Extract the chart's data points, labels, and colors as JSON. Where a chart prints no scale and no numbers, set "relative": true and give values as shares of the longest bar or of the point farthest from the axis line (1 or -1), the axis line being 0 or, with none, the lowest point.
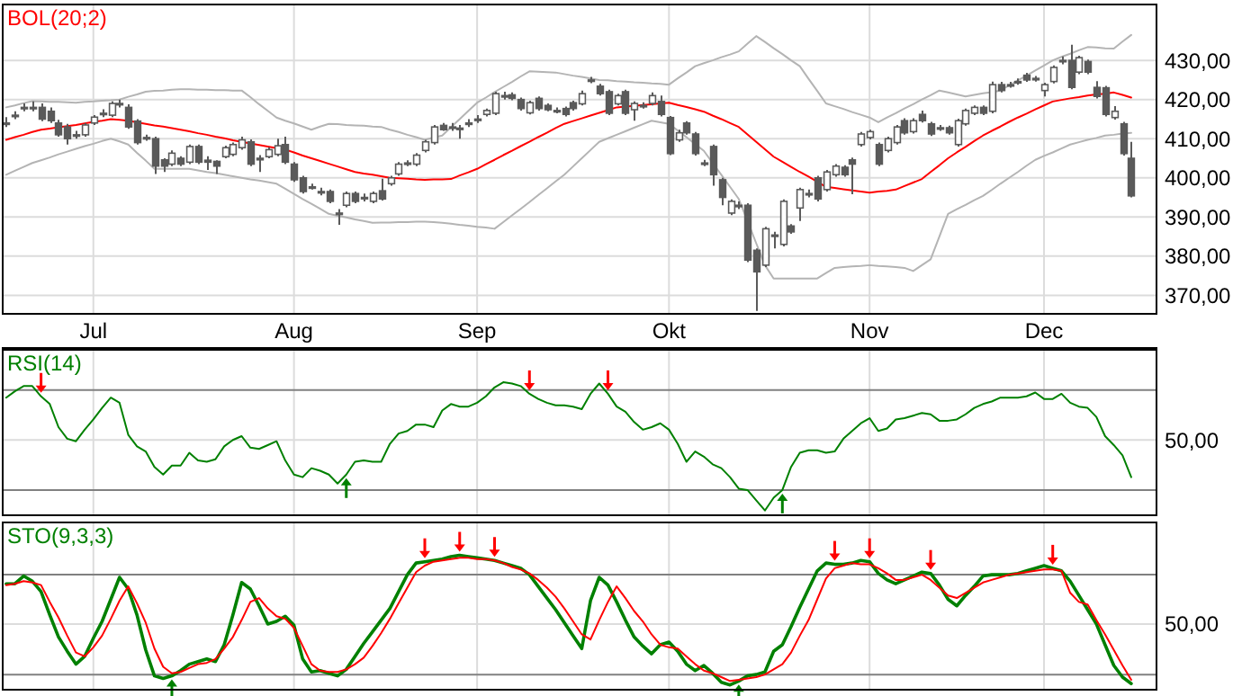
{
  "chart_data": [
    {
      "type": "candlestick",
      "title": "BOL(20;2)",
      "categories": [
        null,
        null,
        null,
        null,
        null,
        null,
        null,
        null,
        null,
        null,
        "Jul",
        null,
        null,
        null,
        null,
        null,
        null,
        null,
        null,
        null,
        null,
        null,
        null,
        null,
        null,
        null,
        null,
        null,
        null,
        null,
        null,
        null,
        null,
        "Aug",
        null,
        null,
        null,
        null,
        null,
        null,
        null,
        null,
        null,
        null,
        null,
        null,
        null,
        null,
        null,
        null,
        null,
        null,
        null,
        null,
        "Sep",
        null,
        null,
        null,
        null,
        null,
        null,
        null,
        null,
        null,
        null,
        null,
        null,
        null,
        null,
        null,
        null,
        null,
        null,
        null,
        null,
        null,
        "Okt",
        null,
        null,
        null,
        null,
        null,
        null,
        null,
        null,
        null,
        null,
        null,
        null,
        null,
        null,
        null,
        null,
        null,
        null,
        null,
        null,
        null,
        null,
        "Nov",
        null,
        null,
        null,
        null,
        null,
        null,
        null,
        null,
        null,
        null,
        null,
        null,
        null,
        null,
        null,
        null,
        null,
        null,
        null,
        "Dec",
        null,
        null,
        null,
        null,
        null,
        null,
        null,
        null,
        null,
        null
      ],
      "ohlc": [
        [
          414,
          415.5,
          413,
          414
        ],
        [
          416,
          417,
          415,
          416
        ],
        [
          418,
          419,
          417,
          418
        ],
        [
          418,
          419.5,
          417,
          418
        ],
        [
          418,
          419,
          414.5,
          415
        ],
        [
          417,
          418,
          414,
          414.6
        ],
        [
          414,
          414.8,
          410.5,
          411
        ],
        [
          413,
          413.8,
          408.5,
          410
        ],
        [
          411,
          412,
          410,
          411
        ],
        [
          411,
          414,
          410.5,
          413.5
        ],
        [
          414,
          416,
          413.5,
          415.5
        ],
        [
          416.5,
          417.5,
          415.5,
          416.5
        ],
        [
          416,
          419.5,
          415.5,
          419
        ],
        [
          419,
          420,
          418,
          419
        ],
        [
          418,
          418.8,
          412.5,
          413
        ],
        [
          414.5,
          415,
          408.5,
          409
        ],
        [
          410.3,
          411,
          409.5,
          410.3
        ],
        [
          410,
          410.5,
          401,
          403
        ],
        [
          404.6,
          405,
          401.5,
          403
        ],
        [
          403.5,
          407,
          403,
          406.3
        ],
        [
          405,
          405.5,
          403,
          403.5
        ],
        [
          404,
          408.5,
          403.5,
          408
        ],
        [
          408,
          408.5,
          403.5,
          404
        ],
        [
          404.5,
          405.5,
          402,
          404
        ],
        [
          404.2,
          404.5,
          401,
          403
        ],
        [
          405.4,
          408.2,
          405,
          407.7
        ],
        [
          406,
          409,
          405.5,
          408.5
        ],
        [
          407.7,
          410.5,
          407.2,
          409.7
        ],
        [
          409.2,
          409.8,
          403,
          403.5
        ],
        [
          405,
          405.8,
          401.5,
          404.6
        ],
        [
          405.4,
          407.8,
          405,
          407.2
        ],
        [
          406,
          410,
          405.5,
          408.2
        ],
        [
          408.5,
          410.5,
          403.5,
          404
        ],
        [
          403.5,
          404,
          399,
          399.5
        ],
        [
          400,
          400.5,
          396,
          396.5
        ],
        [
          397.7,
          398.5,
          397,
          397.7
        ],
        [
          396.5,
          397.5,
          395.5,
          396.5
        ],
        [
          396.5,
          397,
          393.5,
          394
        ],
        [
          391,
          392,
          388,
          391
        ],
        [
          393,
          396.5,
          392.5,
          396
        ],
        [
          396,
          396.5,
          393.5,
          394
        ],
        [
          395,
          396,
          394,
          395
        ],
        [
          394,
          396.5,
          393.5,
          396
        ],
        [
          396.7,
          399.8,
          394.2,
          394.6
        ],
        [
          398.5,
          400.5,
          398,
          400
        ],
        [
          401,
          404,
          400.5,
          403.5
        ],
        [
          403.8,
          404.5,
          403,
          403.8
        ],
        [
          403.5,
          406.3,
          403,
          405.8
        ],
        [
          407,
          409.7,
          406.5,
          409.2
        ],
        [
          409,
          413.5,
          408.5,
          413
        ],
        [
          413.4,
          414,
          412,
          412.3
        ],
        [
          413,
          414,
          412,
          413
        ],
        [
          412.7,
          413.5,
          410,
          412.7
        ],
        [
          414,
          415,
          413,
          414
        ],
        [
          415,
          416,
          414,
          415
        ],
        [
          416.2,
          417.7,
          415.7,
          417.2
        ],
        [
          416.5,
          422,
          416,
          421.5
        ],
        [
          421,
          422,
          420,
          421
        ],
        [
          421.2,
          421.8,
          419.8,
          420.3
        ],
        [
          420,
          420.5,
          417.2,
          417.7
        ],
        [
          416.6,
          419.7,
          416.2,
          419.2
        ],
        [
          420.3,
          420.8,
          417.2,
          417.7
        ],
        [
          418.5,
          419,
          417,
          417.4
        ],
        [
          417.2,
          418,
          416.5,
          417.2
        ],
        [
          417.7,
          418.2,
          415.7,
          416.2
        ],
        [
          419.2,
          419.7,
          417.2,
          417.7
        ],
        [
          418.9,
          422.3,
          418.5,
          421.5
        ],
        [
          425,
          425.8,
          424.2,
          425
        ],
        [
          423.4,
          424,
          421,
          421.5
        ],
        [
          422,
          422.5,
          416,
          416.5
        ],
        [
          418.9,
          421.5,
          418.5,
          421
        ],
        [
          422,
          422.5,
          416,
          416.5
        ],
        [
          417.4,
          419.5,
          414.6,
          419
        ],
        [
          418.5,
          419.3,
          417.7,
          418.5
        ],
        [
          419,
          421.8,
          418.5,
          421
        ],
        [
          419.5,
          421,
          415.7,
          416.2
        ],
        [
          415.4,
          415.8,
          405.8,
          406.2
        ],
        [
          409.7,
          412.3,
          409.2,
          411.5
        ],
        [
          414,
          414.5,
          411,
          411.5
        ],
        [
          411.2,
          411.7,
          405.7,
          406.2
        ],
        [
          403.8,
          404.6,
          403,
          403.8
        ],
        [
          408,
          408.5,
          398,
          400.8
        ],
        [
          399.5,
          400,
          393,
          395
        ],
        [
          391,
          394.5,
          390.5,
          394
        ],
        [
          393,
          394,
          392,
          393
        ],
        [
          393,
          393.5,
          378.5,
          379
        ],
        [
          381.5,
          382,
          366,
          376
        ],
        [
          377.7,
          387.5,
          377.2,
          387
        ],
        [
          385.4,
          386.2,
          382,
          385.4
        ],
        [
          383,
          394.5,
          382.5,
          394
        ],
        [
          387.7,
          388.2,
          385.7,
          386.2
        ],
        [
          392.3,
          397.5,
          389,
          397
        ],
        [
          396,
          397,
          395,
          396
        ],
        [
          400,
          400.5,
          394,
          394.6
        ],
        [
          397,
          402,
          396.5,
          401.5
        ],
        [
          400.8,
          403.5,
          400.3,
          403
        ],
        [
          402.7,
          403.2,
          400.3,
          400.8
        ],
        [
          404.6,
          405.2,
          395.8,
          403.5
        ],
        [
          408.5,
          411.7,
          408,
          411.2
        ],
        [
          410.3,
          412.3,
          409.8,
          411.8
        ],
        [
          408.5,
          409,
          403,
          403.5
        ],
        [
          407,
          410.5,
          406.5,
          410
        ],
        [
          409,
          413.5,
          408.5,
          413
        ],
        [
          414.6,
          415.2,
          411,
          411.5
        ],
        [
          411.8,
          415.2,
          411.3,
          414.6
        ],
        [
          416.2,
          417.2,
          414.1,
          414.6
        ],
        [
          413.8,
          414.3,
          410.7,
          411.2
        ],
        [
          412.8,
          413.5,
          412,
          412.8
        ],
        [
          412.8,
          413.3,
          411,
          411.5
        ],
        [
          408.5,
          415.1,
          408,
          414.6
        ],
        [
          413.8,
          417.7,
          413.3,
          417.2
        ],
        [
          416.5,
          418.5,
          416,
          418
        ],
        [
          418,
          418.5,
          416,
          416.5
        ],
        [
          417,
          424.6,
          416.5,
          423.8
        ],
        [
          423.8,
          424.5,
          421.8,
          422.3
        ],
        [
          423.8,
          424.5,
          423,
          423.8
        ],
        [
          424.6,
          425.4,
          423.8,
          424.6
        ],
        [
          426.2,
          426.8,
          424.5,
          425
        ],
        [
          425.4,
          426,
          424.6,
          425.4
        ],
        [
          422.3,
          424.3,
          420.8,
          423.8
        ],
        [
          424.6,
          428.7,
          424.1,
          428.2
        ],
        [
          430,
          431,
          429,
          430
        ],
        [
          430,
          434,
          422.6,
          423.1
        ],
        [
          427,
          431.2,
          426.5,
          430.7
        ],
        [
          429.7,
          430.2,
          426.5,
          427
        ],
        [
          423.1,
          424.7,
          420.3,
          420.8
        ],
        [
          423,
          423.5,
          415.7,
          416.2
        ],
        [
          415.4,
          418.3,
          414.9,
          417
        ],
        [
          413.8,
          414.3,
          405.7,
          406.2
        ],
        [
          405,
          409.2,
          395,
          395.4
        ]
      ],
      "series": [
        {
          "type": "line",
          "color": "#ff0000",
          "values": [
            409.7,
            410.4,
            411,
            411.7,
            412.3,
            412.6,
            412.9,
            413.2,
            413.5,
            413.9,
            414.3,
            414.6,
            415,
            414.8,
            414.6,
            414.2,
            413.8,
            413.4,
            413.1,
            412.7,
            412.3,
            411.9,
            411.4,
            411,
            410.5,
            410.1,
            409.6,
            409.2,
            408.8,
            408.4,
            408,
            407.6,
            407.2,
            406.5,
            405.7,
            405,
            404.3,
            403.6,
            402.9,
            402.2,
            401.5,
            401.1,
            400.8,
            400.4,
            400,
            399.9,
            399.8,
            399.6,
            399.5,
            399.6,
            399.6,
            399.7,
            400.6,
            401.4,
            402.3,
            403.5,
            404.6,
            405.8,
            406.9,
            408.1,
            409.2,
            410.4,
            411.5,
            412.7,
            413.8,
            414.5,
            415.2,
            415.9,
            416.6,
            417.3,
            418,
            418.2,
            418.4,
            418.6,
            418.8,
            419,
            419.2,
            418.6,
            418.1,
            417.5,
            416.9,
            415.9,
            415,
            414,
            413,
            411.1,
            409.2,
            407.3,
            405.4,
            404.1,
            402.8,
            401.5,
            400.3,
            399,
            397.7,
            397.4,
            397.1,
            396.8,
            396.5,
            396.2,
            396.5,
            396.7,
            397,
            397.9,
            398.8,
            399.7,
            401.5,
            403.2,
            405,
            406.5,
            407.9,
            409.4,
            410.8,
            412,
            413.1,
            414.3,
            415.4,
            416.4,
            417.5,
            418.5,
            419.5,
            419.9,
            420.3,
            420.6,
            421,
            421.3,
            421.5,
            421.8,
            421.2,
            420.5
          ]
        },
        {
          "type": "line",
          "color": "#b4b4b4",
          "values": [
            418,
            418.5,
            419.1,
            419.6,
            419.5,
            419.4,
            419.4,
            419.3,
            419.2,
            419.4,
            419.5,
            419.7,
            419.8,
            420,
            420.7,
            421.3,
            422,
            422.2,
            422.3,
            422.5,
            422.6,
            422.6,
            422.5,
            422.5,
            422.4,
            422.4,
            422.3,
            422.3,
            420.6,
            418.8,
            417.1,
            415.4,
            414.6,
            413.9,
            413.1,
            412.3,
            413.1,
            413.8,
            413.7,
            413.5,
            413.4,
            413.3,
            413.1,
            413,
            412.3,
            411.7,
            411,
            410.4,
            409.7,
            410.3,
            410.8,
            412.9,
            415,
            417.1,
            419.2,
            420.5,
            421.9,
            423.2,
            424.5,
            425.9,
            427.2,
            427.1,
            427,
            426.9,
            426.5,
            426.1,
            425.8,
            425.4,
            425,
            424.9,
            424.7,
            424.6,
            424.4,
            424.3,
            424.1,
            424,
            423.8,
            425.4,
            426.9,
            428.5,
            429.3,
            430,
            430.8,
            431.5,
            432.3,
            434.3,
            436.2,
            434.7,
            433.1,
            431.6,
            430,
            428.5,
            425.3,
            422.2,
            419,
            418.3,
            417.6,
            416.8,
            416.1,
            415.4,
            414.2,
            415.4,
            416.5,
            417.7,
            418.8,
            420,
            421.1,
            422.3,
            421.8,
            421.3,
            420.8,
            421.2,
            421.6,
            421.9,
            422.3,
            423.6,
            424.9,
            426.1,
            427.4,
            428.7,
            430,
            430.9,
            431.7,
            432.6,
            433.4,
            433.3,
            433.1,
            433,
            434.8,
            436.5
          ]
        },
        {
          "type": "line",
          "color": "#b4b4b4",
          "values": [
            400.8,
            401.8,
            402.8,
            403.8,
            404.5,
            405.2,
            406,
            406.7,
            407.4,
            408.1,
            408.7,
            409.4,
            410,
            409.3,
            408.5,
            406.4,
            404.4,
            402.3,
            402.3,
            402.3,
            402.3,
            402.3,
            401.9,
            401.5,
            401.2,
            400.8,
            400.4,
            400,
            399.6,
            399.3,
            398.9,
            398.5,
            397.2,
            395.9,
            394.6,
            393.4,
            392.1,
            390.8,
            390.3,
            389.9,
            389.4,
            389,
            388.5,
            388.6,
            388.6,
            388.7,
            388.7,
            388.8,
            388.8,
            388.7,
            388.5,
            388.3,
            388,
            387.8,
            387.5,
            387.3,
            387,
            388.7,
            390.4,
            392.1,
            393.8,
            395.6,
            397.3,
            399.1,
            400.8,
            402.9,
            405,
            407.1,
            409.2,
            410.1,
            411,
            411.9,
            412.8,
            413.7,
            414.6,
            414.2,
            413.8,
            412.1,
            410.4,
            408.6,
            406.9,
            403.8,
            400.8,
            397.7,
            394.6,
            389,
            383.3,
            377.7,
            374.3,
            374.3,
            374.3,
            374.3,
            374.3,
            374.3,
            375.7,
            377,
            377.2,
            377.4,
            377.5,
            377.7,
            377.5,
            377.4,
            377.2,
            377,
            376.2,
            377.7,
            379.2,
            385,
            390.8,
            392,
            393.1,
            394.3,
            395.4,
            396.9,
            398.5,
            400,
            401.5,
            403.1,
            404.6,
            405.6,
            406.5,
            407.5,
            408.5,
            409.1,
            409.7,
            410.2,
            410.8,
            411,
            411.3,
            411.5
          ]
        }
      ],
      "ylim": [
        365.5,
        444.5
      ],
      "yticks": [
        {
          "value": 370,
          "label": "370,00"
        },
        {
          "value": 380,
          "label": "380,00"
        },
        {
          "value": 390,
          "label": "390,00"
        },
        {
          "value": 400,
          "label": "400,00"
        },
        {
          "value": 410,
          "label": "410,00"
        },
        {
          "value": 420,
          "label": "420,00"
        },
        {
          "value": 430,
          "label": "430,00"
        }
      ],
      "grid": true
    },
    {
      "type": "line",
      "title": "RSI(14)",
      "relative": true,
      "categories": [
        null,
        null,
        null,
        null,
        null,
        null,
        null,
        null,
        null,
        null,
        null,
        null,
        null,
        null,
        null,
        null,
        null,
        null,
        null,
        null,
        null,
        null,
        null,
        null,
        null,
        null,
        null,
        null,
        null,
        null,
        null,
        null,
        null,
        null,
        null,
        null,
        null,
        null,
        null,
        null,
        null,
        null,
        null,
        null,
        null,
        null,
        null,
        null,
        null,
        null,
        null,
        null,
        null,
        null,
        null,
        null,
        null,
        null,
        null,
        null,
        null,
        null,
        null,
        null,
        null,
        null,
        null,
        null,
        null,
        null,
        null,
        null,
        null,
        null,
        null,
        null,
        null,
        null,
        null,
        null,
        null,
        null,
        null,
        null,
        null,
        null,
        null,
        null,
        null,
        null,
        null,
        null,
        null,
        null,
        null,
        null,
        null,
        null,
        null,
        null,
        null,
        null,
        null,
        null,
        null,
        null,
        null,
        null,
        null,
        null,
        null,
        null,
        null,
        null,
        null,
        null,
        null,
        null,
        null,
        null,
        null,
        null,
        null,
        null,
        null,
        null,
        null,
        null,
        null,
        null
      ],
      "series": [
        {
          "color": "#008000",
          "values": [
            0.88,
            0.93,
            0.97,
            0.97,
            0.89,
            0.83,
            0.65,
            0.56,
            0.54,
            0.63,
            0.71,
            0.8,
            0.88,
            0.84,
            0.59,
            0.5,
            0.46,
            0.34,
            0.28,
            0.35,
            0.35,
            0.45,
            0.39,
            0.38,
            0.4,
            0.5,
            0.55,
            0.58,
            0.49,
            0.48,
            0.51,
            0.54,
            0.39,
            0.28,
            0.26,
            0.33,
            0.31,
            0.28,
            0.21,
            0.28,
            0.38,
            0.39,
            0.38,
            0.38,
            0.52,
            0.6,
            0.62,
            0.67,
            0.67,
            0.65,
            0.78,
            0.83,
            0.81,
            0.81,
            0.84,
            0.89,
            0.96,
            1,
            0.99,
            0.97,
            0.91,
            0.87,
            0.84,
            0.82,
            0.82,
            0.81,
            0.79,
            0.91,
            0.99,
            0.91,
            0.81,
            0.77,
            0.69,
            0.63,
            0.65,
            0.68,
            0.63,
            0.52,
            0.38,
            0.46,
            0.42,
            0.36,
            0.33,
            0.26,
            0.17,
            0.16,
            0.08,
            0,
            0.1,
            0.16,
            0.34,
            0.45,
            0.47,
            0.47,
            0.45,
            0.46,
            0.56,
            0.62,
            0.68,
            0.72,
            0.62,
            0.64,
            0.71,
            0.72,
            0.74,
            0.76,
            0.75,
            0.7,
            0.7,
            0.71,
            0.75,
            0.8,
            0.83,
            0.85,
            0.88,
            0.88,
            0.88,
            0.89,
            0.92,
            0.87,
            0.87,
            0.91,
            0.84,
            0.81,
            0.8,
            0.73,
            0.58,
            0.51,
            0.43,
            0.26
          ]
        }
      ],
      "grid": true,
      "ref_lines": [
        {
          "axis": "y",
          "value": 0.94,
          "color": "#808080"
        },
        {
          "axis": "y",
          "value": 0.16,
          "color": "#808080"
        },
        {
          "axis": "y",
          "value": 0.55,
          "color": "#dcdcdc"
        }
      ],
      "annotations": [
        "50,00"
      ]
    },
    {
      "type": "line",
      "title": "STO(9,3,3)",
      "relative": true,
      "categories": [
        null,
        null,
        null,
        null,
        null,
        null,
        null,
        null,
        null,
        null,
        null,
        null,
        null,
        null,
        null,
        null,
        null,
        null,
        null,
        null,
        null,
        null,
        null,
        null,
        null,
        null,
        null,
        null,
        null,
        null,
        null,
        null,
        null,
        null,
        null,
        null,
        null,
        null,
        null,
        null,
        null,
        null,
        null,
        null,
        null,
        null,
        null,
        null,
        null,
        null,
        null,
        null,
        null,
        null,
        null,
        null,
        null,
        null,
        null,
        null,
        null,
        null,
        null,
        null,
        null,
        null,
        null,
        null,
        null,
        null,
        null,
        null,
        null,
        null,
        null,
        null,
        null,
        null,
        null,
        null,
        null,
        null,
        null,
        null,
        null,
        null,
        null,
        null,
        null,
        null,
        null,
        null,
        null,
        null,
        null,
        null,
        null,
        null,
        null,
        null,
        null,
        null,
        null,
        null,
        null,
        null,
        null,
        null,
        null,
        null,
        null,
        null,
        null,
        null,
        null,
        null,
        null,
        null,
        null,
        null,
        null,
        null,
        null,
        null,
        null,
        null,
        null,
        null,
        null,
        null
      ],
      "series": [
        {
          "color": "#008000",
          "values": [
            0.78,
            0.78,
            0.84,
            0.8,
            0.72,
            0.54,
            0.37,
            0.26,
            0.16,
            0.22,
            0.36,
            0.49,
            0.66,
            0.83,
            0.74,
            0.54,
            0.27,
            0.07,
            0.05,
            0.07,
            0.11,
            0.16,
            0.18,
            0.2,
            0.18,
            0.31,
            0.54,
            0.79,
            0.74,
            0.61,
            0.47,
            0.49,
            0.53,
            0.46,
            0.2,
            0.1,
            0.11,
            0.09,
            0.07,
            0.12,
            0.22,
            0.32,
            0.41,
            0.5,
            0.59,
            0.72,
            0.85,
            0.94,
            0.95,
            0.96,
            0.97,
            0.99,
            1,
            0.99,
            0.98,
            0.97,
            0.96,
            0.94,
            0.92,
            0.9,
            0.85,
            0.76,
            0.67,
            0.58,
            0.48,
            0.38,
            0.28,
            0.65,
            0.83,
            0.77,
            0.64,
            0.5,
            0.37,
            0.3,
            0.24,
            0.31,
            0.33,
            0.26,
            0.16,
            0.11,
            0.15,
            0.09,
            0.02,
            0,
            0.03,
            0.07,
            0.08,
            0.1,
            0.26,
            0.31,
            0.45,
            0.6,
            0.74,
            0.88,
            0.94,
            0.93,
            0.93,
            0.94,
            0.96,
            0.95,
            0.86,
            0.81,
            0.78,
            0.81,
            0.84,
            0.87,
            0.86,
            0.77,
            0.66,
            0.61,
            0.69,
            0.76,
            0.84,
            0.85,
            0.85,
            0.85,
            0.86,
            0.88,
            0.9,
            0.92,
            0.9,
            0.88,
            0.8,
            0.69,
            0.58,
            0.47,
            0.31,
            0.15,
            0.06,
            0.01
          ]
        },
        {
          "color": "#ff0000",
          "values": [
            0.77,
            0.78,
            0.8,
            0.79,
            0.77,
            0.64,
            0.52,
            0.38,
            0.25,
            0.22,
            0.29,
            0.38,
            0.51,
            0.65,
            0.76,
            0.63,
            0.48,
            0.28,
            0.14,
            0.09,
            0.1,
            0.13,
            0.16,
            0.17,
            0.2,
            0.28,
            0.37,
            0.5,
            0.64,
            0.67,
            0.59,
            0.53,
            0.51,
            0.44,
            0.3,
            0.16,
            0.11,
            0.1,
            0.1,
            0.12,
            0.16,
            0.21,
            0.3,
            0.4,
            0.51,
            0.63,
            0.75,
            0.87,
            0.92,
            0.95,
            0.96,
            0.97,
            0.98,
            0.98,
            0.97,
            0.97,
            0.96,
            0.94,
            0.91,
            0.89,
            0.86,
            0.81,
            0.75,
            0.68,
            0.59,
            0.49,
            0.39,
            0.35,
            0.5,
            0.64,
            0.76,
            0.67,
            0.57,
            0.49,
            0.39,
            0.31,
            0.29,
            0.28,
            0.22,
            0.16,
            0.11,
            0.09,
            0.06,
            0.03,
            0.04,
            0.05,
            0.06,
            0.08,
            0.12,
            0.16,
            0.25,
            0.38,
            0.5,
            0.66,
            0.82,
            0.9,
            0.92,
            0.94,
            0.93,
            0.93,
            0.9,
            0.86,
            0.81,
            0.81,
            0.83,
            0.85,
            0.81,
            0.75,
            0.69,
            0.67,
            0.71,
            0.75,
            0.79,
            0.81,
            0.83,
            0.85,
            0.86,
            0.87,
            0.88,
            0.89,
            0.89,
            0.88,
            0.71,
            0.64,
            0.62,
            0.5,
            0.39,
            0.27,
            0.15,
            0.04
          ]
        }
      ],
      "grid": true,
      "ref_lines": [
        {
          "axis": "y",
          "value": 0.85,
          "color": "#808080"
        },
        {
          "axis": "y",
          "value": 0.08,
          "color": "#808080"
        },
        {
          "axis": "y",
          "value": 0.47,
          "color": "#dcdcdc"
        }
      ],
      "annotations": [
        "50,00"
      ]
    }
  ]
}
